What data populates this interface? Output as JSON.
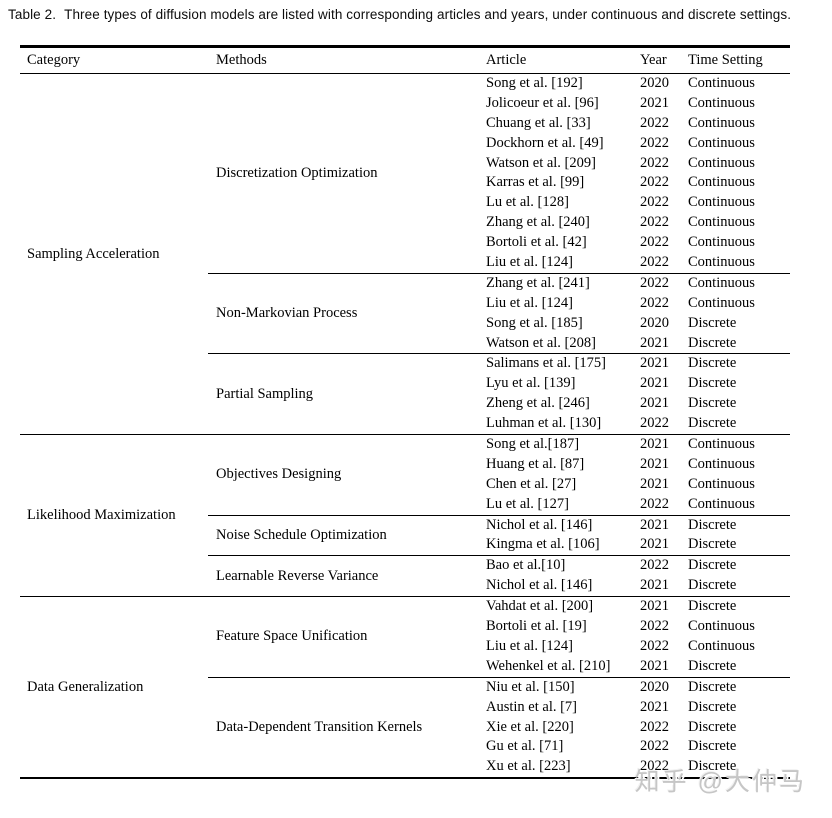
{
  "caption": {
    "label": "Table 2.",
    "text": "Three types of diffusion models are listed with corresponding articles and years, under continuous and discrete settings."
  },
  "watermark": "知乎 @大仲马",
  "table": {
    "headers": [
      "Category",
      "Methods",
      "Article",
      "Year",
      "Time Setting"
    ],
    "categories": [
      {
        "name": "Sampling Acceleration",
        "methods": [
          {
            "name": "Discretization Optimization",
            "rows": [
              {
                "article": "Song et al. [192]",
                "year": "2020",
                "time_setting": "Continuous"
              },
              {
                "article": "Jolicoeur et al. [96]",
                "year": "2021",
                "time_setting": "Continuous"
              },
              {
                "article": "Chuang et al. [33]",
                "year": "2022",
                "time_setting": "Continuous"
              },
              {
                "article": "Dockhorn et al. [49]",
                "year": "2022",
                "time_setting": "Continuous"
              },
              {
                "article": "Watson et al. [209]",
                "year": "2022",
                "time_setting": "Continuous"
              },
              {
                "article": "Karras et al. [99]",
                "year": "2022",
                "time_setting": "Continuous"
              },
              {
                "article": "Lu et al. [128]",
                "year": "2022",
                "time_setting": "Continuous"
              },
              {
                "article": "Zhang et al. [240]",
                "year": "2022",
                "time_setting": "Continuous"
              },
              {
                "article": "Bortoli et al. [42]",
                "year": "2022",
                "time_setting": "Continuous"
              },
              {
                "article": "Liu et al. [124]",
                "year": "2022",
                "time_setting": "Continuous"
              }
            ]
          },
          {
            "name": "Non-Markovian Process",
            "rows": [
              {
                "article": "Zhang et al. [241]",
                "year": "2022",
                "time_setting": "Continuous"
              },
              {
                "article": "Liu et al. [124]",
                "year": "2022",
                "time_setting": "Continuous"
              },
              {
                "article": "Song et al. [185]",
                "year": "2020",
                "time_setting": "Discrete"
              },
              {
                "article": "Watson et al. [208]",
                "year": "2021",
                "time_setting": "Discrete"
              }
            ]
          },
          {
            "name": "Partial Sampling",
            "rows": [
              {
                "article": "Salimans et al. [175]",
                "year": "2021",
                "time_setting": "Discrete"
              },
              {
                "article": "Lyu et al. [139]",
                "year": "2021",
                "time_setting": "Discrete"
              },
              {
                "article": "Zheng et al. [246]",
                "year": "2021",
                "time_setting": "Discrete"
              },
              {
                "article": "Luhman et al. [130]",
                "year": "2022",
                "time_setting": "Discrete"
              }
            ]
          }
        ]
      },
      {
        "name": "Likelihood Maximization",
        "methods": [
          {
            "name": "Objectives Designing",
            "rows": [
              {
                "article": "Song et al.[187]",
                "year": "2021",
                "time_setting": "Continuous"
              },
              {
                "article": "Huang et al. [87]",
                "year": "2021",
                "time_setting": "Continuous"
              },
              {
                "article": "Chen et al. [27]",
                "year": "2021",
                "time_setting": "Continuous"
              },
              {
                "article": "Lu et al. [127]",
                "year": "2022",
                "time_setting": "Continuous"
              }
            ]
          },
          {
            "name": "Noise Schedule Optimization",
            "rows": [
              {
                "article": "Nichol et al. [146]",
                "year": "2021",
                "time_setting": "Discrete"
              },
              {
                "article": "Kingma et al. [106]",
                "year": "2021",
                "time_setting": "Discrete"
              }
            ]
          },
          {
            "name": "Learnable Reverse Variance",
            "rows": [
              {
                "article": "Bao et al.[10]",
                "year": "2022",
                "time_setting": "Discrete"
              },
              {
                "article": "Nichol et al. [146]",
                "year": "2021",
                "time_setting": "Discrete"
              }
            ]
          }
        ]
      },
      {
        "name": "Data Generalization",
        "methods": [
          {
            "name": "Feature Space Unification",
            "rows": [
              {
                "article": "Vahdat et al. [200]",
                "year": "2021",
                "time_setting": "Discrete"
              },
              {
                "article": "Bortoli et al. [19]",
                "year": "2022",
                "time_setting": "Continuous"
              },
              {
                "article": "Liu et al. [124]",
                "year": "2022",
                "time_setting": "Continuous"
              },
              {
                "article": "Wehenkel et al. [210]",
                "year": "2021",
                "time_setting": "Discrete"
              }
            ]
          },
          {
            "name": "Data-Dependent Transition Kernels",
            "rows": [
              {
                "article": "Niu et al. [150]",
                "year": "2020",
                "time_setting": "Discrete"
              },
              {
                "article": "Austin et al. [7]",
                "year": "2021",
                "time_setting": "Discrete"
              },
              {
                "article": "Xie et al. [220]",
                "year": "2022",
                "time_setting": "Discrete"
              },
              {
                "article": "Gu et al. [71]",
                "year": "2022",
                "time_setting": "Discrete"
              },
              {
                "article": "Xu et al. [223]",
                "year": "2022",
                "time_setting": "Discrete"
              }
            ]
          }
        ]
      }
    ]
  }
}
